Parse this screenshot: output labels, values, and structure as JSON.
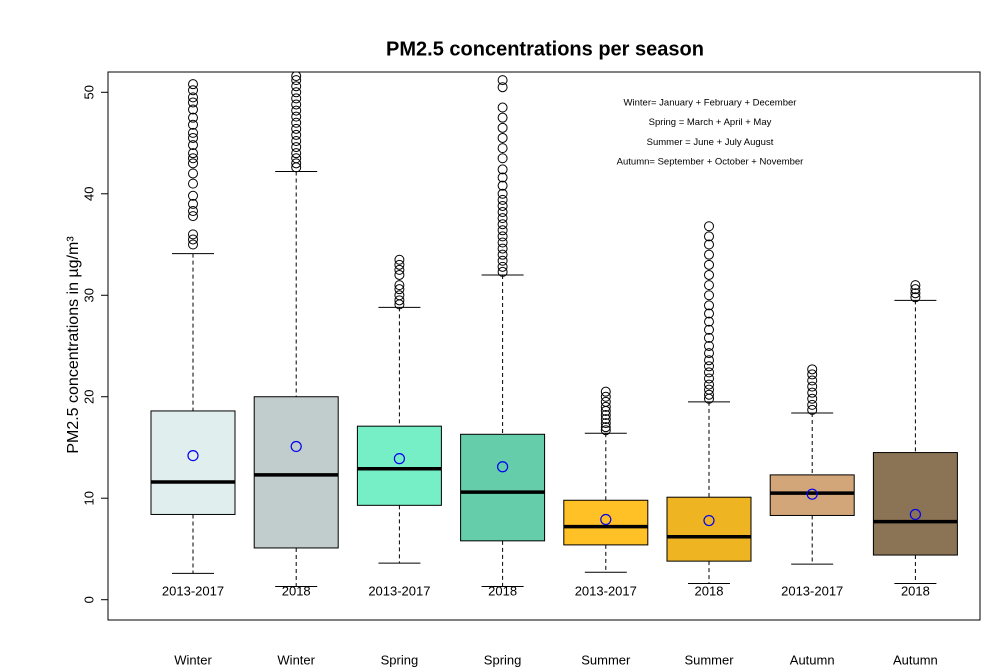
{
  "chart_data": {
    "type": "box",
    "title": "PM2.5 concentrations per season",
    "y_label": "PM2.5 concentrations in µg/m³",
    "annotations": [
      "Winter= January + February + December",
      "Spring = March + April + May",
      "Summer = June + July  August",
      "Autumn= September + October + November"
    ],
    "categories": [
      "Winter",
      "Winter",
      "Spring",
      "Spring",
      "Summer",
      "Summer",
      "Autumn",
      "Autumn"
    ],
    "groups": [
      "2013-2017",
      "2018",
      "2013-2017",
      "2018",
      "2013-2017",
      "2018",
      "2013-2017",
      "2018"
    ],
    "colors": [
      "#e0eeee",
      "#c1cdcd",
      "#76eec6",
      "#66cdaa",
      "#ffc125",
      "#eeb422",
      "#d2a679",
      "#8b7355"
    ],
    "mean_color": "#0000ee",
    "ylim": [
      -2,
      52
    ],
    "yticks": [
      0,
      10,
      20,
      30,
      40,
      50
    ],
    "boxes": [
      {
        "whisker_low": 2.6,
        "q1": 8.4,
        "median": 11.6,
        "q3": 18.6,
        "whisker_high": 34.1,
        "mean": 14.2,
        "outliers": [
          35,
          35.5,
          36,
          37.8,
          38.3,
          39,
          39.8,
          41,
          42,
          43,
          43.5,
          44,
          44.8,
          45.5,
          46,
          46.8,
          47.5,
          48.3,
          49,
          49.5,
          50.2,
          50.8
        ]
      },
      {
        "whisker_low": 1.3,
        "q1": 5.1,
        "median": 12.3,
        "q3": 20,
        "whisker_high": 42.2,
        "mean": 15.1,
        "outliers": [
          42.6,
          43,
          43.5,
          44,
          44.6,
          45.2,
          45.8,
          46.4,
          47,
          47.6,
          48.2,
          48.8,
          49.4,
          50,
          50.6,
          51.2,
          51.6
        ]
      },
      {
        "whisker_low": 3.6,
        "q1": 9.3,
        "median": 12.9,
        "q3": 17.1,
        "whisker_high": 28.8,
        "mean": 13.9,
        "outliers": [
          29.1,
          29.5,
          30,
          30.6,
          31,
          32,
          32.5,
          33,
          33.5
        ]
      },
      {
        "whisker_low": 1.3,
        "q1": 5.8,
        "median": 10.6,
        "q3": 16.3,
        "whisker_high": 32,
        "mean": 13.1,
        "outliers": [
          32.3,
          32.8,
          33.4,
          34,
          34.6,
          35.2,
          35.8,
          36.4,
          37,
          37.6,
          38.2,
          38.8,
          39.4,
          40,
          40.8,
          41.6,
          42.4,
          43.5,
          44.5,
          45.5,
          46.5,
          47.5,
          48.5,
          50.5,
          51.2
        ]
      },
      {
        "whisker_low": 2.7,
        "q1": 5.4,
        "median": 7.2,
        "q3": 9.8,
        "whisker_high": 16.4,
        "mean": 7.9,
        "outliers": [
          16.7,
          17,
          17.4,
          17.8,
          18.2,
          18.6,
          19,
          19.5,
          20,
          20.5
        ]
      },
      {
        "whisker_low": 1.6,
        "q1": 3.8,
        "median": 6.2,
        "q3": 10.1,
        "whisker_high": 19.5,
        "mean": 7.8,
        "outliers": [
          19.8,
          20.2,
          20.7,
          21.2,
          21.8,
          22.4,
          23,
          23.6,
          24.3,
          25,
          25.8,
          26.6,
          27.4,
          28.2,
          29,
          30,
          31,
          32,
          33,
          34,
          35,
          35.8,
          36.8
        ]
      },
      {
        "whisker_low": 3.5,
        "q1": 8.3,
        "median": 10.5,
        "q3": 12.3,
        "whisker_high": 18.4,
        "mean": 10.4,
        "outliers": [
          18.7,
          19.2,
          19.8,
          20.4,
          21,
          21.6,
          22.2,
          22.7
        ]
      },
      {
        "whisker_low": 1.6,
        "q1": 4.4,
        "median": 7.7,
        "q3": 14.5,
        "whisker_high": 29.5,
        "mean": 8.4,
        "outliers": [
          29.8,
          30.2,
          30.6,
          31
        ]
      }
    ]
  }
}
